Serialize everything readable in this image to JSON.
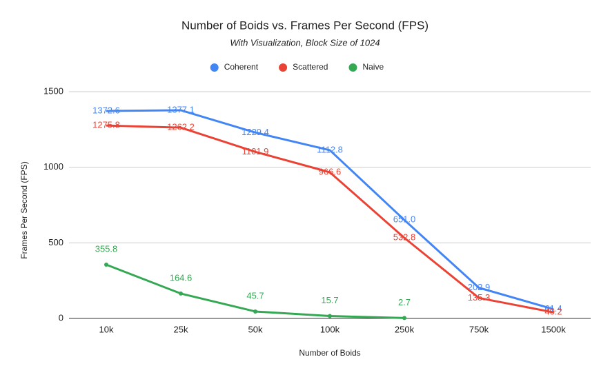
{
  "chart_data": {
    "type": "line",
    "title": "Number of Boids vs. Frames Per Second (FPS)",
    "subtitle": "With Visualization, Block Size of 1024",
    "x_label": "Number of Boids",
    "y_label": "Frames Per Second (FPS)",
    "categories": [
      "10k",
      "25k",
      "50k",
      "100k",
      "250k",
      "750k",
      "1500k"
    ],
    "series": [
      {
        "name": "Coherent",
        "color": "#4285f4",
        "values": [
          1372.6,
          1377.1,
          1229.4,
          1112.8,
          651.0,
          202.9,
          61.4
        ],
        "value_labels": [
          "1372.6",
          "1377.1",
          "1229.4",
          "1112.8",
          "651.0",
          "202.9",
          "61.4"
        ]
      },
      {
        "name": "Scattered",
        "color": "#ea4335",
        "values": [
          1275.8,
          1262.2,
          1101.9,
          966.6,
          532.8,
          135.3,
          40.2
        ]
      },
      {
        "name": "Naive",
        "color": "#34a853",
        "values": [
          355.8,
          164.6,
          45.7,
          15.7,
          2.7,
          null,
          null
        ],
        "markers": true
      }
    ],
    "ylim": [
      0,
      1500
    ],
    "yticks": [
      0,
      500,
      1000,
      1500
    ],
    "grid": true,
    "legend": "top"
  }
}
